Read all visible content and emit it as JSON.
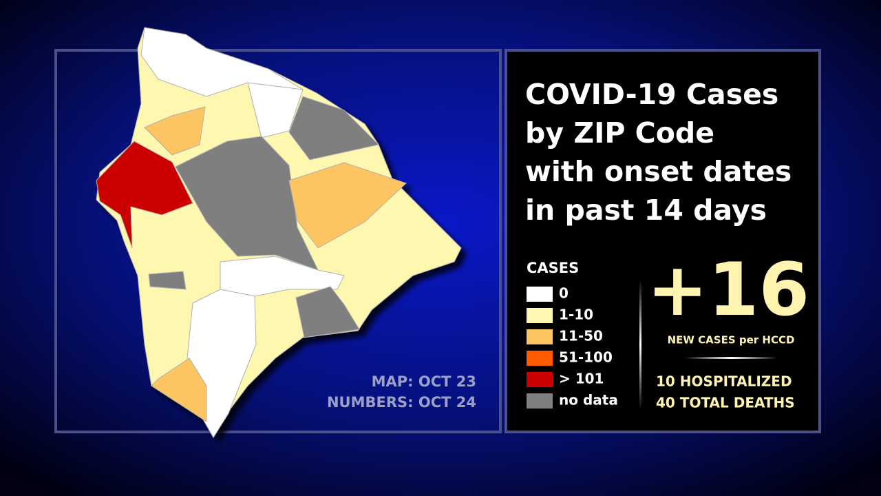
{
  "header": {
    "title_lines": [
      "COVID-19 Cases",
      "by ZIP Code",
      "with onset dates",
      "in past 14 days"
    ]
  },
  "legend": {
    "title": "CASES",
    "items": [
      {
        "label": "0",
        "color": "#ffffff"
      },
      {
        "label": "1-10",
        "color": "#fdf7b0"
      },
      {
        "label": "11-50",
        "color": "#fdc562"
      },
      {
        "label": "51-100",
        "color": "#ff5a00"
      },
      {
        "label": "> 101",
        "color": "#cc0000"
      },
      {
        "label": "no data",
        "color": "#7f7f7f"
      }
    ]
  },
  "stats": {
    "new_cases": "+16",
    "new_cases_caption": "NEW CASES per HCCD",
    "hospitalized": "10 HOSPITALIZED",
    "deaths": "40 TOTAL DEATHS"
  },
  "dates": {
    "map": "MAP: OCT 23",
    "numbers": "NUMBERS: OCT 24"
  }
}
